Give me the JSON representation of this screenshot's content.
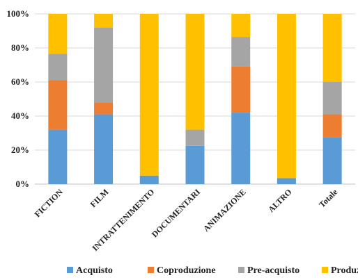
{
  "chart_data": {
    "type": "bar",
    "stacked": true,
    "percent": true,
    "categories": [
      "FICTION",
      "FILM",
      "INTRATTENIMENTO",
      "DOCUMENTARI",
      "ANIMAZIONE",
      "ALTRO",
      "Totale"
    ],
    "series": [
      {
        "name": "Acquisto",
        "color": "#5B9BD5",
        "values": [
          32,
          41,
          5,
          22.5,
          42,
          3.5,
          27.5
        ]
      },
      {
        "name": "Coproduzione",
        "color": "#ED7D31",
        "values": [
          29,
          7,
          0,
          0,
          27,
          0,
          13.5
        ]
      },
      {
        "name": "Pre-acquisto",
        "color": "#A5A5A5",
        "values": [
          15.5,
          44,
          0,
          9.5,
          17.5,
          0,
          19
        ]
      },
      {
        "name": "Produzione",
        "color": "#FFC000",
        "values": [
          23.5,
          8,
          95,
          68,
          13.5,
          96.5,
          40
        ]
      }
    ],
    "yticks": [
      "0%",
      "20%",
      "40%",
      "60%",
      "80%",
      "100%"
    ],
    "ylim": [
      0,
      100
    ],
    "grid": true,
    "legend": "bottom"
  }
}
